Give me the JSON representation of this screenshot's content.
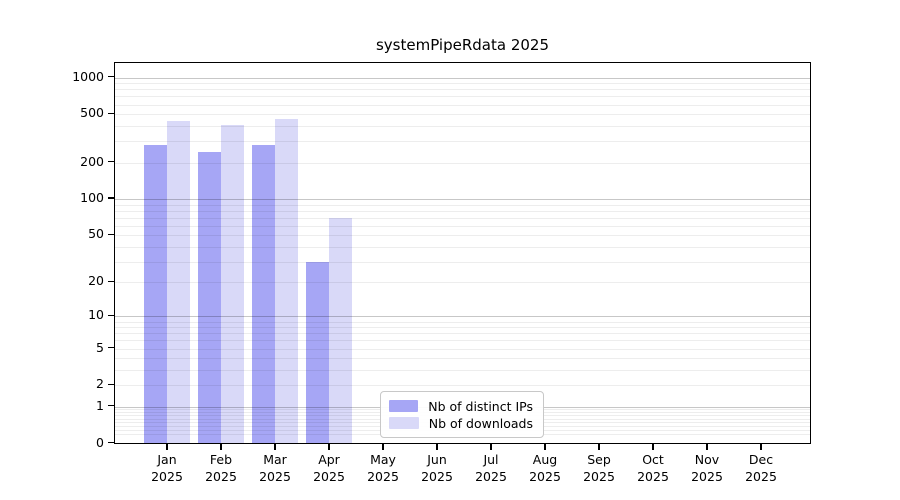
{
  "chart_data": {
    "type": "bar",
    "title": "systemPipeRdata 2025",
    "categories": [
      "Jan",
      "Feb",
      "Mar",
      "Apr",
      "May",
      "Jun",
      "Jul",
      "Aug",
      "Sep",
      "Oct",
      "Nov",
      "Dec"
    ],
    "x_year_label": "2025",
    "series": [
      {
        "name": "Nb of distinct IPs",
        "color": "#a6a6f5",
        "values": [
          280,
          245,
          280,
          30,
          0,
          0,
          0,
          0,
          0,
          0,
          0,
          0
        ]
      },
      {
        "name": "Nb of downloads",
        "color": "#d9d9f8",
        "values": [
          440,
          405,
          460,
          70,
          0,
          0,
          0,
          0,
          0,
          0,
          0,
          0
        ]
      }
    ],
    "y_axis": {
      "scale": "log1p",
      "tick_values": [
        0,
        1,
        2,
        5,
        10,
        20,
        50,
        100,
        200,
        500,
        1000
      ],
      "major_grid_values": [
        1,
        10,
        100,
        1000
      ],
      "max_value": 1000,
      "grid": true
    },
    "legend": {
      "position": "lower-center",
      "entries": [
        "Nb of distinct IPs",
        "Nb of downloads"
      ]
    }
  },
  "colors": {
    "background": "#ffffff",
    "axis": "#000000",
    "bar_distinct_ips": "#a6a6f5",
    "bar_downloads": "#d9d9f8"
  }
}
